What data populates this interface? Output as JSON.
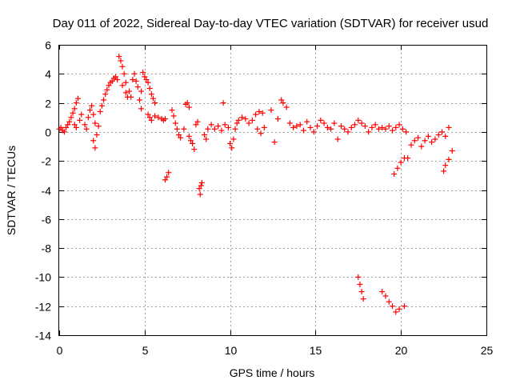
{
  "chart_data": {
    "type": "scatter",
    "title": "Day 011 of 2022, Sidereal Day-to-day VTEC variation (SDTVAR) for receiver usud",
    "xlabel": "GPS time / hours",
    "ylabel": "SDTVAR / TECUs",
    "xlim": [
      0,
      25
    ],
    "ylim": [
      -14,
      6
    ],
    "xticks": [
      0,
      5,
      10,
      15,
      20,
      25
    ],
    "yticks": [
      -14,
      -12,
      -10,
      -8,
      -6,
      -4,
      -2,
      0,
      2,
      4,
      6
    ],
    "xtick_labels": [
      "0",
      "5",
      "10",
      "15",
      "20",
      "25"
    ],
    "ytick_labels": [
      "-14",
      "-12",
      "-10",
      "-8",
      "-6",
      "-4",
      "-2",
      "0",
      "2",
      "4",
      "6"
    ],
    "grid": true,
    "marker": "+",
    "color": "#ff0000",
    "series": [
      {
        "name": "SDTVAR",
        "points": [
          [
            0.0,
            0.2
          ],
          [
            0.1,
            0.3
          ],
          [
            0.2,
            0.1
          ],
          [
            0.3,
            0.0
          ],
          [
            0.4,
            0.3
          ],
          [
            0.5,
            0.5
          ],
          [
            0.6,
            0.7
          ],
          [
            0.7,
            1.0
          ],
          [
            0.8,
            1.3
          ],
          [
            0.9,
            1.6
          ],
          [
            1.0,
            2.0
          ],
          [
            1.1,
            2.3
          ],
          [
            0.9,
            0.5
          ],
          [
            1.0,
            0.3
          ],
          [
            1.2,
            0.8
          ],
          [
            1.3,
            1.2
          ],
          [
            1.5,
            0.5
          ],
          [
            1.6,
            0.2
          ],
          [
            1.7,
            1.0
          ],
          [
            1.8,
            1.5
          ],
          [
            1.9,
            1.8
          ],
          [
            2.0,
            1.2
          ],
          [
            2.1,
            0.6
          ],
          [
            2.2,
            -0.2
          ],
          [
            2.0,
            -0.6
          ],
          [
            2.1,
            -1.1
          ],
          [
            2.3,
            0.4
          ],
          [
            2.4,
            1.4
          ],
          [
            2.5,
            1.8
          ],
          [
            2.6,
            2.2
          ],
          [
            2.7,
            2.6
          ],
          [
            2.8,
            2.9
          ],
          [
            2.9,
            3.2
          ],
          [
            3.0,
            3.4
          ],
          [
            3.1,
            3.5
          ],
          [
            3.2,
            3.7
          ],
          [
            3.3,
            3.8
          ],
          [
            3.4,
            3.6
          ],
          [
            3.5,
            5.2
          ],
          [
            3.6,
            4.9
          ],
          [
            3.7,
            4.5
          ],
          [
            3.8,
            4.0
          ],
          [
            3.9,
            3.4
          ],
          [
            3.7,
            3.2
          ],
          [
            3.9,
            2.7
          ],
          [
            4.0,
            2.4
          ],
          [
            4.1,
            2.8
          ],
          [
            4.2,
            2.4
          ],
          [
            4.3,
            3.6
          ],
          [
            4.4,
            4.0
          ],
          [
            4.5,
            3.5
          ],
          [
            4.6,
            3.1
          ],
          [
            4.8,
            2.8
          ],
          [
            4.7,
            2.2
          ],
          [
            4.8,
            1.6
          ],
          [
            4.9,
            4.1
          ],
          [
            5.0,
            3.8
          ],
          [
            5.1,
            3.6
          ],
          [
            5.2,
            3.4
          ],
          [
            5.3,
            3.0
          ],
          [
            5.4,
            2.6
          ],
          [
            5.5,
            2.3
          ],
          [
            5.6,
            2.0
          ],
          [
            5.2,
            1.2
          ],
          [
            5.3,
            1.0
          ],
          [
            5.4,
            0.8
          ],
          [
            5.6,
            1.1
          ],
          [
            5.8,
            1.0
          ],
          [
            6.0,
            0.9
          ],
          [
            6.1,
            0.8
          ],
          [
            6.2,
            0.9
          ],
          [
            6.2,
            -3.3
          ],
          [
            6.3,
            -3.1
          ],
          [
            6.4,
            -2.8
          ],
          [
            6.6,
            1.5
          ],
          [
            6.7,
            1.1
          ],
          [
            6.8,
            0.6
          ],
          [
            6.9,
            0.2
          ],
          [
            7.0,
            -0.2
          ],
          [
            7.1,
            -0.4
          ],
          [
            7.3,
            0.2
          ],
          [
            7.4,
            1.9
          ],
          [
            7.5,
            2.0
          ],
          [
            7.6,
            1.7
          ],
          [
            7.6,
            -0.3
          ],
          [
            7.7,
            -0.6
          ],
          [
            7.8,
            -0.8
          ],
          [
            7.9,
            -1.2
          ],
          [
            8.0,
            0.5
          ],
          [
            8.1,
            0.7
          ],
          [
            8.2,
            -3.9
          ],
          [
            8.25,
            -4.3
          ],
          [
            8.3,
            -3.7
          ],
          [
            8.35,
            -3.5
          ],
          [
            8.5,
            -0.2
          ],
          [
            8.6,
            -0.5
          ],
          [
            8.7,
            0.2
          ],
          [
            8.9,
            0.5
          ],
          [
            9.1,
            0.2
          ],
          [
            9.3,
            0.4
          ],
          [
            9.5,
            0.1
          ],
          [
            9.7,
            0.5
          ],
          [
            9.9,
            0.3
          ],
          [
            9.6,
            2.0
          ],
          [
            10.0,
            -0.8
          ],
          [
            10.1,
            -1.1
          ],
          [
            10.2,
            -0.5
          ],
          [
            10.3,
            0.2
          ],
          [
            10.4,
            0.6
          ],
          [
            10.5,
            0.8
          ],
          [
            10.7,
            1.0
          ],
          [
            10.9,
            0.9
          ],
          [
            11.1,
            0.6
          ],
          [
            11.3,
            0.8
          ],
          [
            11.5,
            1.2
          ],
          [
            11.7,
            1.4
          ],
          [
            11.9,
            1.3
          ],
          [
            11.6,
            0.2
          ],
          [
            11.8,
            -0.1
          ],
          [
            12.0,
            0.3
          ],
          [
            12.4,
            1.5
          ],
          [
            12.6,
            -0.7
          ],
          [
            12.8,
            0.9
          ],
          [
            13.0,
            2.2
          ],
          [
            13.1,
            2.0
          ],
          [
            13.3,
            1.7
          ],
          [
            13.5,
            0.6
          ],
          [
            13.7,
            0.3
          ],
          [
            13.9,
            0.4
          ],
          [
            14.1,
            0.5
          ],
          [
            14.3,
            0.1
          ],
          [
            14.5,
            0.7
          ],
          [
            14.7,
            0.3
          ],
          [
            14.9,
            0.0
          ],
          [
            15.1,
            0.4
          ],
          [
            15.3,
            0.8
          ],
          [
            15.5,
            0.6
          ],
          [
            15.7,
            0.3
          ],
          [
            15.9,
            0.2
          ],
          [
            16.1,
            0.6
          ],
          [
            16.3,
            -0.5
          ],
          [
            16.5,
            0.4
          ],
          [
            16.7,
            0.2
          ],
          [
            16.9,
            0.0
          ],
          [
            17.1,
            0.3
          ],
          [
            17.3,
            0.5
          ],
          [
            17.5,
            0.8
          ],
          [
            17.7,
            0.6
          ],
          [
            17.9,
            0.4
          ],
          [
            18.1,
            0.0
          ],
          [
            18.3,
            0.3
          ],
          [
            18.5,
            0.5
          ],
          [
            18.7,
            0.2
          ],
          [
            18.9,
            0.3
          ],
          [
            19.1,
            0.2
          ],
          [
            19.3,
            0.4
          ],
          [
            19.5,
            0.1
          ],
          [
            19.7,
            0.3
          ],
          [
            19.9,
            0.5
          ],
          [
            20.1,
            0.2
          ],
          [
            20.3,
            0.0
          ],
          [
            19.6,
            -2.9
          ],
          [
            19.8,
            -2.5
          ],
          [
            20.0,
            -2.1
          ],
          [
            20.2,
            -1.8
          ],
          [
            20.4,
            -1.8
          ],
          [
            20.6,
            -0.9
          ],
          [
            20.8,
            -0.6
          ],
          [
            21.0,
            -0.4
          ],
          [
            21.2,
            -1.0
          ],
          [
            21.4,
            -0.6
          ],
          [
            21.6,
            -0.3
          ],
          [
            21.8,
            -0.7
          ],
          [
            22.0,
            -0.5
          ],
          [
            22.2,
            -0.2
          ],
          [
            22.4,
            0.0
          ],
          [
            22.6,
            -0.3
          ],
          [
            22.8,
            0.3
          ],
          [
            22.5,
            -2.7
          ],
          [
            22.6,
            -2.3
          ],
          [
            22.8,
            -1.9
          ],
          [
            23.0,
            -1.3
          ],
          [
            17.5,
            -10.0
          ],
          [
            17.6,
            -10.5
          ],
          [
            17.7,
            -11.0
          ],
          [
            17.8,
            -11.5
          ],
          [
            18.9,
            -11.0
          ],
          [
            19.1,
            -11.3
          ],
          [
            19.3,
            -11.7
          ],
          [
            19.5,
            -12.0
          ],
          [
            19.7,
            -12.4
          ],
          [
            19.9,
            -12.2
          ],
          [
            20.2,
            -12.0
          ]
        ]
      }
    ]
  }
}
